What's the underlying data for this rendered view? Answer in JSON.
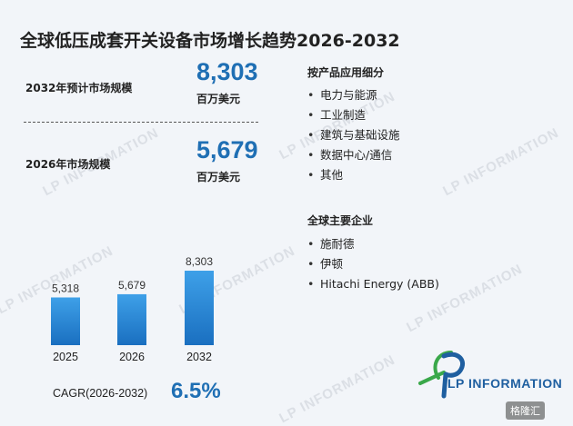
{
  "title": "全球低压成套开关设备市场增长趋势2026-2032",
  "stats": {
    "forecast_label": "2032年预计市场规模",
    "forecast_value": "8,303",
    "forecast_unit": "百万美元",
    "current_label": "2026年市场规模",
    "current_value": "5,679",
    "current_unit": "百万美元"
  },
  "applications": {
    "title": "按产品应用细分",
    "items": [
      "电力与能源",
      "工业制造",
      "建筑与基础设施",
      "数据中心/通信",
      "其他"
    ]
  },
  "companies": {
    "title": "全球主要企业",
    "items": [
      "施耐德",
      "伊顿",
      "Hitachi Energy (ABB)"
    ]
  },
  "chart_data": {
    "type": "bar",
    "categories": [
      "2025",
      "2026",
      "2032"
    ],
    "values": [
      5318,
      5679,
      8303
    ],
    "value_labels": [
      "5,318",
      "5,679",
      "8,303"
    ],
    "title": "",
    "xlabel": "",
    "ylabel": "",
    "grid": false
  },
  "cagr": {
    "label": "CAGR(2026-2032)",
    "value": "6.5%"
  },
  "logo": {
    "text": "LP INFORMATION",
    "colors": [
      "#1f5fa0",
      "#3aa84a"
    ]
  },
  "watermark": {
    "text": "LP INFORMATION",
    "site_badge": "格隆汇"
  },
  "colors": {
    "accent": "#1f6fb4",
    "bar_top": "#3ea0e8",
    "bar_bottom": "#1a6fc0"
  }
}
